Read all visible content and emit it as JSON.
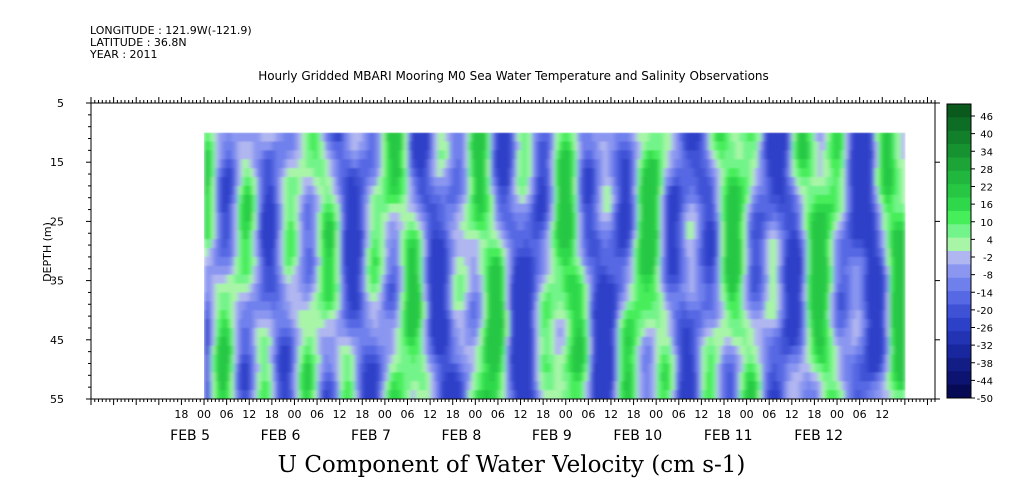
{
  "meta": {
    "longitude": "LONGITUDE : 121.9W(-121.9)",
    "latitude": "LATITUDE : 36.8N",
    "year": "YEAR : 2011"
  },
  "chart_data": {
    "type": "heatmap",
    "title": "Hourly Gridded MBARI Mooring M0 Sea Water Temperature and Salinity Observations",
    "bottom_title": "U Component of Water Velocity (cm s-1)",
    "ylabel": "DEPTH (m)",
    "y_ticks": [
      "5",
      "15",
      "25",
      "35",
      "45",
      "55"
    ],
    "y_range": [
      5,
      55
    ],
    "data_depth_range": [
      10,
      55
    ],
    "x_range_hours": [
      -30,
      194
    ],
    "data_x_range_hours": [
      0,
      186
    ],
    "x_hour_ticks": [
      "18",
      "00",
      "06",
      "12",
      "18",
      "00",
      "06",
      "12",
      "18",
      "00",
      "06",
      "12",
      "18",
      "00",
      "06",
      "12",
      "18",
      "00",
      "06",
      "12",
      "18",
      "00",
      "06",
      "12",
      "18",
      "00",
      "06",
      "12",
      "18",
      "00",
      "06",
      "12"
    ],
    "x_date_labels": [
      {
        "label": "FEB  5",
        "hour": 0
      },
      {
        "label": "FEB  6",
        "hour": 24
      },
      {
        "label": "FEB  7",
        "hour": 48
      },
      {
        "label": "FEB  8",
        "hour": 72
      },
      {
        "label": "FEB  9",
        "hour": 96
      },
      {
        "label": "FEB 10",
        "hour": 120
      },
      {
        "label": "FEB 11",
        "hour": 144
      },
      {
        "label": "FEB 12",
        "hour": 168
      }
    ],
    "colorbar": {
      "labels": [
        "46",
        "40",
        "34",
        "28",
        "22",
        "16",
        "10",
        "4",
        "-2",
        "-8",
        "-14",
        "-20",
        "-26",
        "-32",
        "-38",
        "-44",
        "-50"
      ],
      "colors_top_to_bottom": [
        "#0a5a1e",
        "#0e6d24",
        "#127f2a",
        "#179231",
        "#1ca437",
        "#21b73e",
        "#27c744",
        "#2fd84b",
        "#46ee5a",
        "#73f48a",
        "#a8f5a8",
        "#b0b6f0",
        "#8a96f0",
        "#6f80ec",
        "#5668e3",
        "#3f52d6",
        "#2d40c8",
        "#2233b4",
        "#19279e",
        "#131d86",
        "#0c1370",
        "#070a55"
      ]
    },
    "u_velocity_pattern_cm_s": {
      "range": [
        -26,
        20
      ],
      "shown_as": "hourly bands, alternating positive (green) and negative (blue)"
    }
  }
}
